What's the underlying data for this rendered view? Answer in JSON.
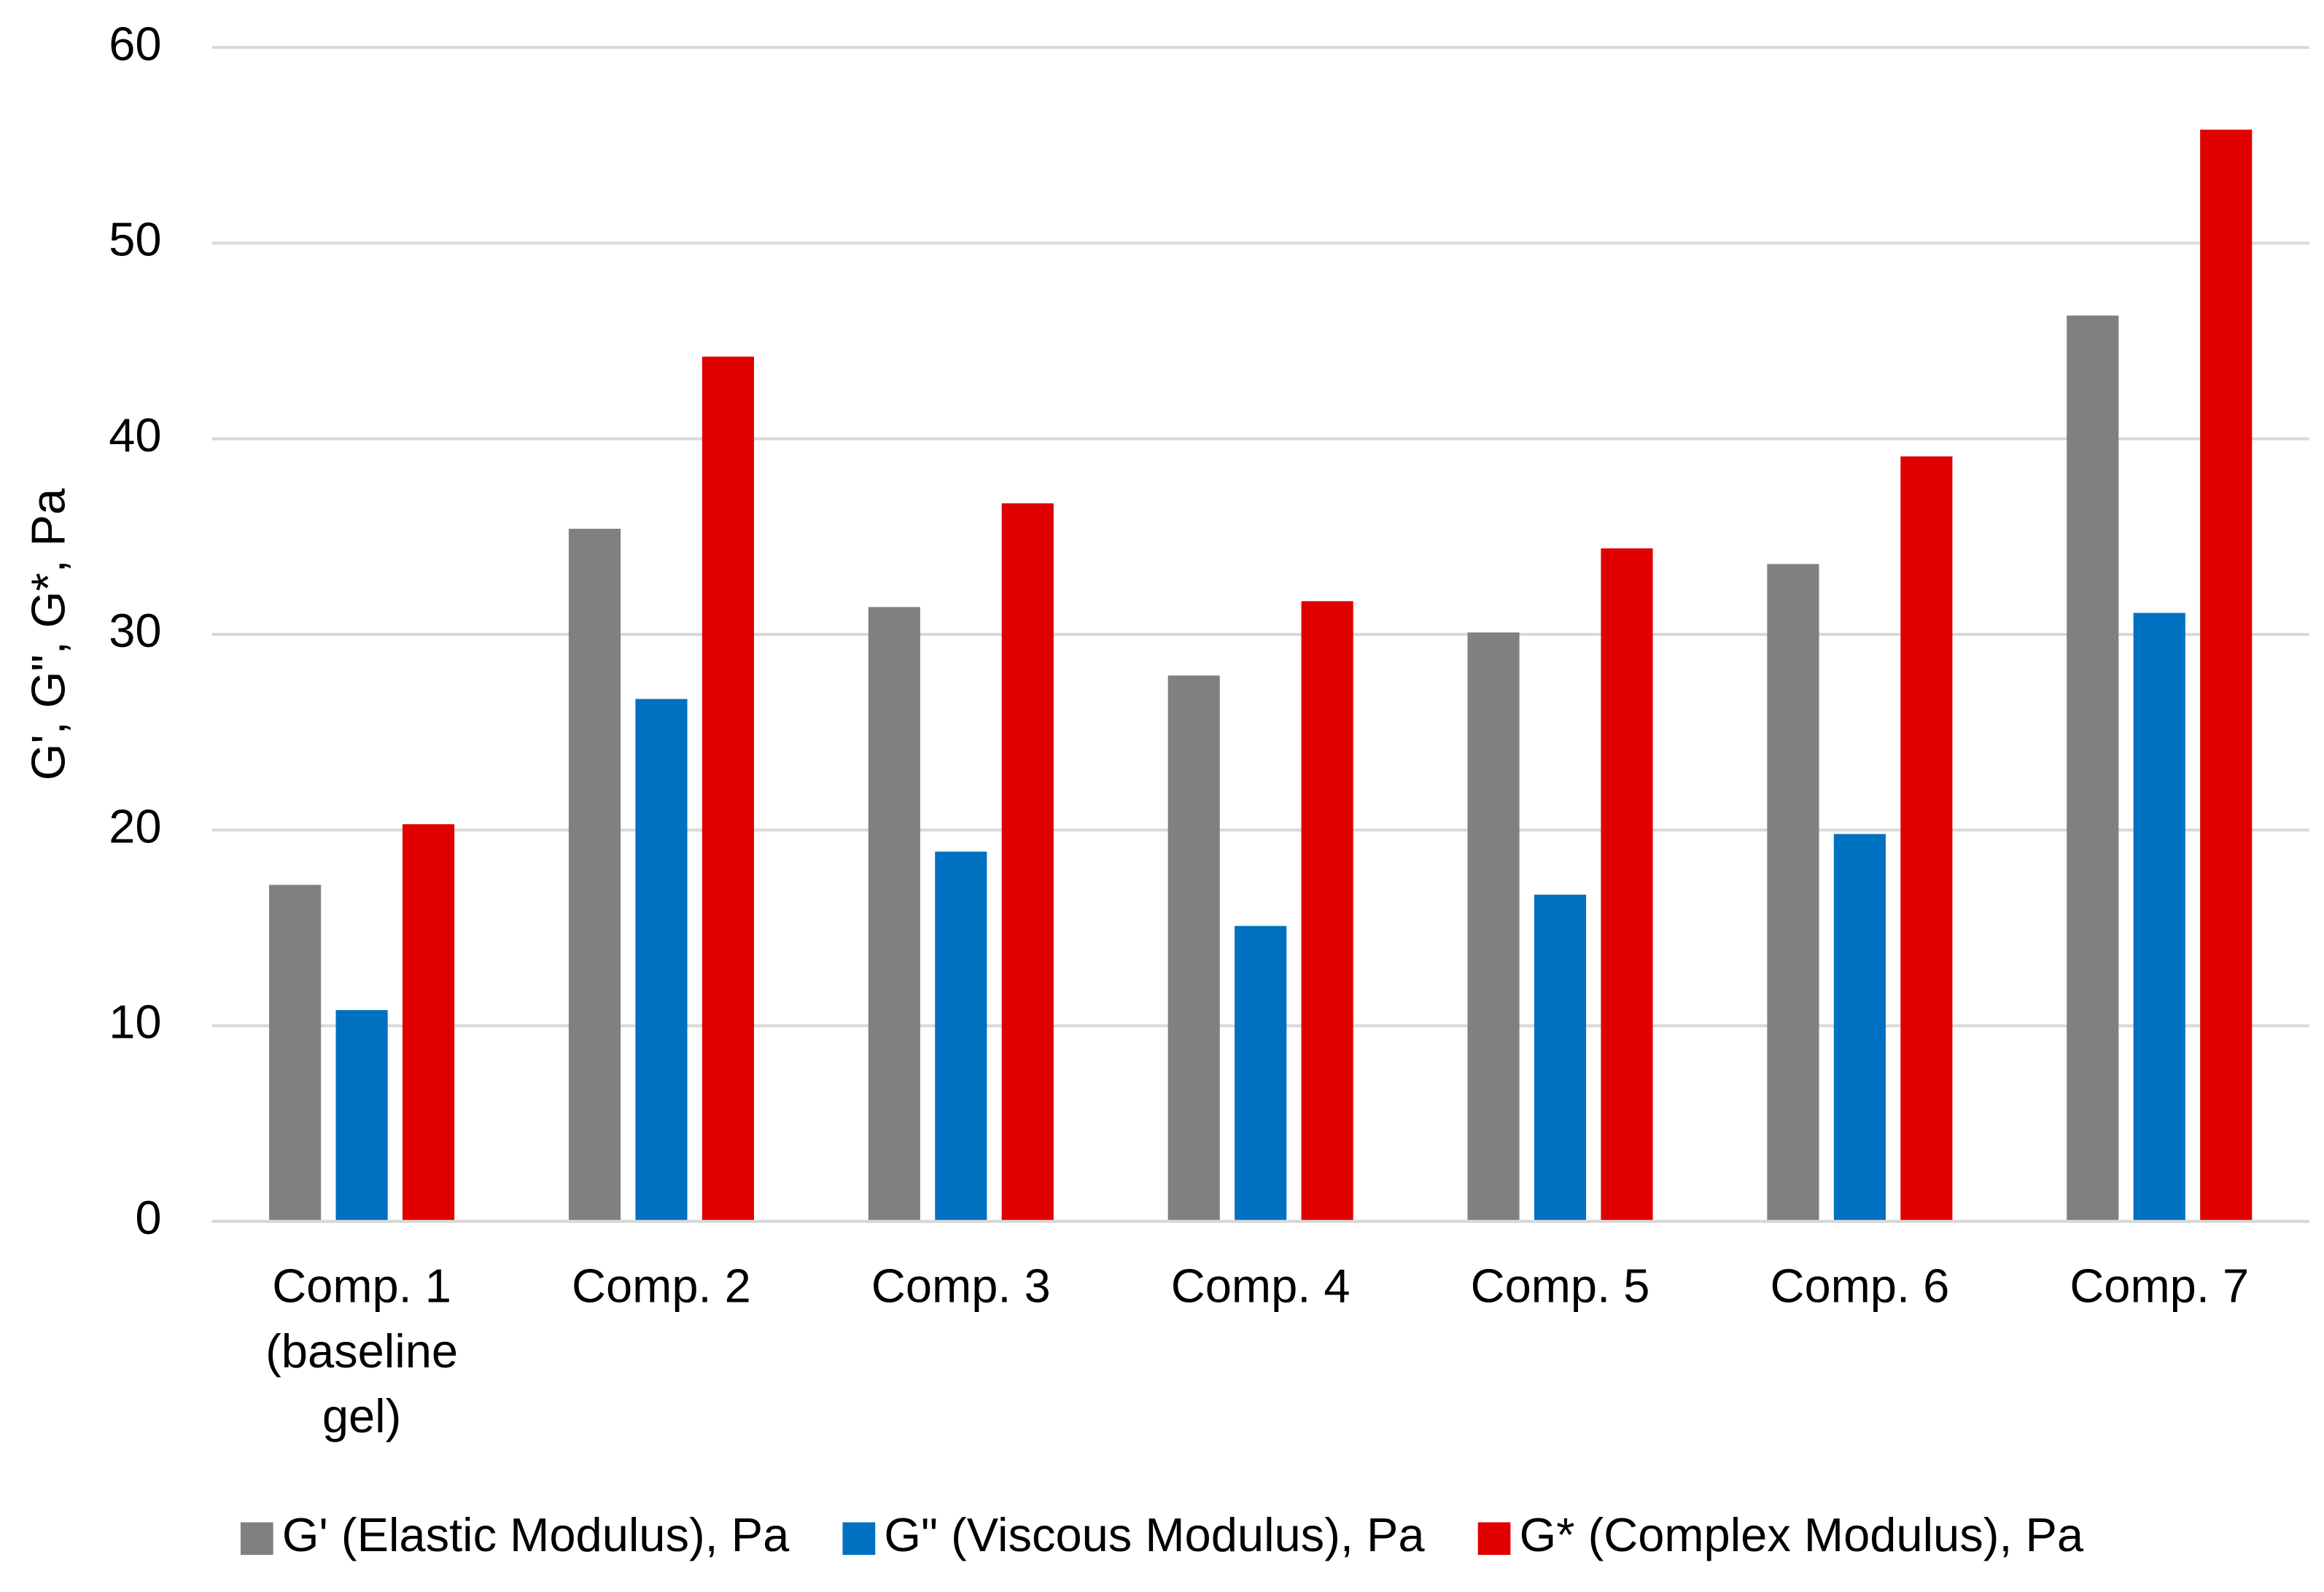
{
  "chart_data": {
    "type": "bar",
    "y_label": "G', G\", G*, Pa",
    "categories": [
      "Comp. 1 (baseline gel)",
      "Comp. 2",
      "Comp. 3",
      "Comp. 4",
      "Comp. 5",
      "Comp. 6",
      "Comp. 7"
    ],
    "series": [
      {
        "name": "G' (Elastic Modulus), Pa",
        "color": "#808080",
        "values": [
          17.2,
          35.4,
          31.4,
          27.9,
          30.1,
          33.6,
          46.3
        ]
      },
      {
        "name": "G\" (Viscous Modulus), Pa",
        "color": "#0070c0",
        "values": [
          10.8,
          26.7,
          18.9,
          15.1,
          16.7,
          19.8,
          31.1
        ]
      },
      {
        "name": "G* (Complex Modulus), Pa",
        "color": "#e00000",
        "values": [
          20.3,
          44.2,
          36.7,
          31.7,
          34.4,
          39.1,
          55.8
        ]
      }
    ],
    "ylim": [
      0,
      60
    ],
    "yticks": [
      0,
      10,
      20,
      30,
      40,
      50,
      60
    ],
    "grid": true,
    "legend": "bottom"
  }
}
